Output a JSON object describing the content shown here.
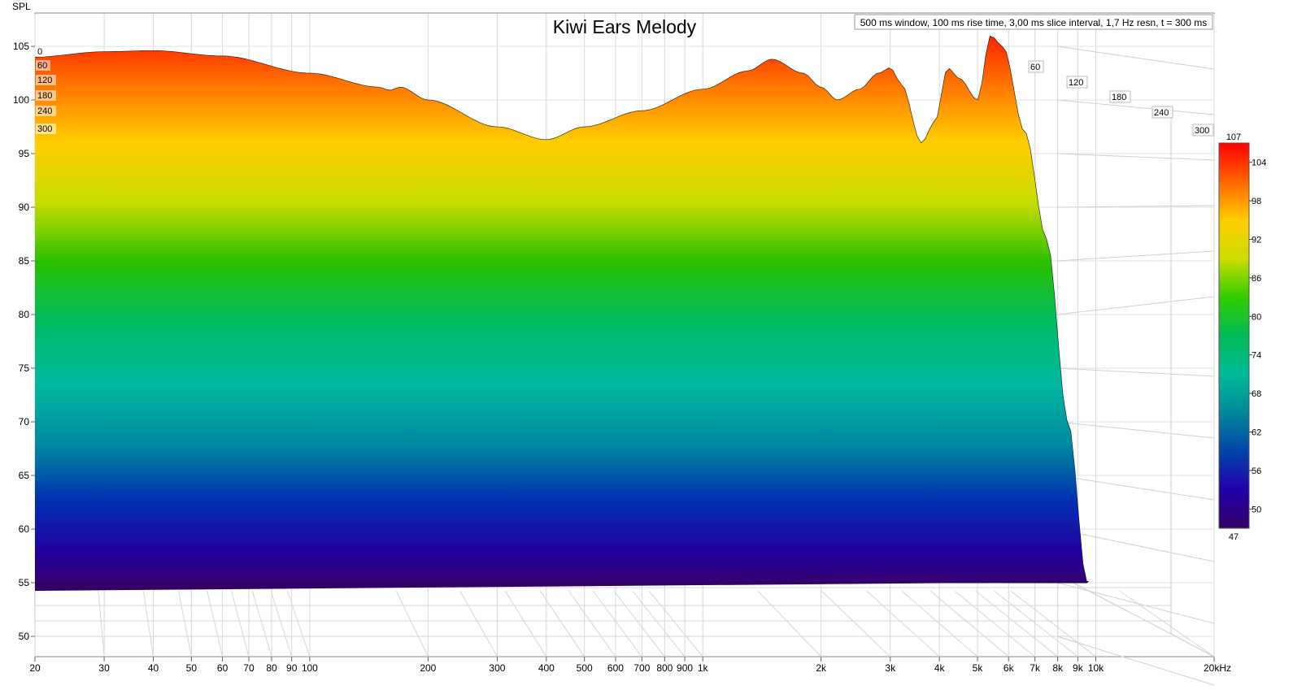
{
  "chart_data": {
    "type": "waterfall",
    "title": "Kiwi Ears Melody",
    "info": "500 ms window, 100 ms rise time, 3,00 ms slice interval, 1,7 Hz resn, t = 300 ms",
    "ylabel": "SPL",
    "y_ticks": [
      "105",
      "100",
      "95",
      "90",
      "85",
      "80",
      "75",
      "70",
      "65",
      "60",
      "55",
      "50"
    ],
    "y_tick_values": [
      105,
      100,
      95,
      90,
      85,
      80,
      75,
      70,
      65,
      60,
      55,
      50
    ],
    "ylim": [
      48.5,
      107
    ],
    "x_scale": "log",
    "xlim": [
      20,
      20000
    ],
    "x_ticks": [
      {
        "v": 20,
        "label": "20"
      },
      {
        "v": 30,
        "label": "30"
      },
      {
        "v": 40,
        "label": "40"
      },
      {
        "v": 50,
        "label": "50"
      },
      {
        "v": 60,
        "label": "60"
      },
      {
        "v": 70,
        "label": "70"
      },
      {
        "v": 80,
        "label": "80"
      },
      {
        "v": 90,
        "label": "90"
      },
      {
        "v": 100,
        "label": "100"
      },
      {
        "v": 200,
        "label": "200"
      },
      {
        "v": 300,
        "label": "300"
      },
      {
        "v": 400,
        "label": "400"
      },
      {
        "v": 500,
        "label": "500"
      },
      {
        "v": 600,
        "label": "600"
      },
      {
        "v": 700,
        "label": "700"
      },
      {
        "v": 800,
        "label": "800"
      },
      {
        "v": 900,
        "label": "900"
      },
      {
        "v": 1000,
        "label": "1k"
      },
      {
        "v": 2000,
        "label": "2k"
      },
      {
        "v": 3000,
        "label": "3k"
      },
      {
        "v": 4000,
        "label": "4k"
      },
      {
        "v": 5000,
        "label": "5k"
      },
      {
        "v": 6000,
        "label": "6k"
      },
      {
        "v": 7000,
        "label": "7k"
      },
      {
        "v": 8000,
        "label": "8k"
      },
      {
        "v": 9000,
        "label": "9k"
      },
      {
        "v": 10000,
        "label": "10k"
      },
      {
        "v": 20000,
        "label": "20kHz"
      }
    ],
    "time_axis": {
      "ticks_left": [
        "0",
        "60",
        "120",
        "180",
        "240",
        "300"
      ],
      "ticks_right": [
        "60",
        "120",
        "180",
        "240",
        "300"
      ]
    },
    "colorbar": {
      "min": 47,
      "max": 107,
      "ticks": [
        "107",
        "104",
        "98",
        "92",
        "86",
        "80",
        "74",
        "68",
        "62",
        "56",
        "50",
        "47"
      ],
      "tick_values": [
        107,
        104,
        98,
        92,
        86,
        80,
        74,
        68,
        62,
        56,
        50,
        47
      ],
      "colors": [
        "#ff0000",
        "#ff6600",
        "#ffcc00",
        "#ccdd00",
        "#33cc00",
        "#00bb55",
        "#00bb99",
        "#008899",
        "#0044aa",
        "#2200aa",
        "#330066"
      ]
    },
    "front_slice_t0": [
      {
        "f": 20,
        "spl": 104.0
      },
      {
        "f": 30,
        "spl": 104.5
      },
      {
        "f": 40,
        "spl": 104.6
      },
      {
        "f": 60,
        "spl": 104.1
      },
      {
        "f": 100,
        "spl": 102.5
      },
      {
        "f": 150,
        "spl": 101.2
      },
      {
        "f": 160,
        "spl": 100.9
      },
      {
        "f": 170,
        "spl": 101.2
      },
      {
        "f": 200,
        "spl": 100.0
      },
      {
        "f": 300,
        "spl": 97.5
      },
      {
        "f": 400,
        "spl": 96.3
      },
      {
        "f": 500,
        "spl": 97.5
      },
      {
        "f": 700,
        "spl": 99.0
      },
      {
        "f": 1000,
        "spl": 101.0
      },
      {
        "f": 1300,
        "spl": 102.7
      },
      {
        "f": 1500,
        "spl": 103.8
      },
      {
        "f": 1800,
        "spl": 102.5
      },
      {
        "f": 2000,
        "spl": 101.2
      },
      {
        "f": 2200,
        "spl": 100.0
      },
      {
        "f": 2500,
        "spl": 101.0
      },
      {
        "f": 2800,
        "spl": 102.5
      },
      {
        "f": 3000,
        "spl": 103.0
      },
      {
        "f": 3200,
        "spl": 101.5
      },
      {
        "f": 3600,
        "spl": 96.0
      },
      {
        "f": 3900,
        "spl": 98.0
      },
      {
        "f": 4200,
        "spl": 103.0
      },
      {
        "f": 4500,
        "spl": 102.0
      },
      {
        "f": 5000,
        "spl": 100.0
      },
      {
        "f": 5400,
        "spl": 106.0
      },
      {
        "f": 5800,
        "spl": 105.0
      },
      {
        "f": 6600,
        "spl": 97.0
      },
      {
        "f": 7500,
        "spl": 87.0
      },
      {
        "f": 8500,
        "spl": 70.0
      },
      {
        "f": 9500,
        "spl": 55.0
      }
    ]
  }
}
